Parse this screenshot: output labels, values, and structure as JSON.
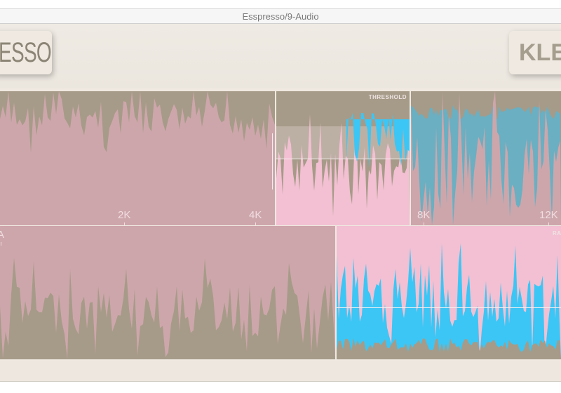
{
  "window": {
    "title": "Esspresso/9-Audio"
  },
  "header": {
    "logo_left": "ESSO",
    "logo_right": "KLE"
  },
  "panels": {
    "spectrum_left": {
      "ticks": [
        "2K",
        "4K"
      ]
    },
    "threshold": {
      "label": "THRESHOLD"
    },
    "spectrum_right": {
      "ticks": [
        "8K",
        "12K"
      ]
    },
    "bottom_left": {
      "label": "A"
    },
    "bottom_right": {
      "label": "RA"
    }
  },
  "colors": {
    "pink": "#f2c0d2",
    "mauve": "#cda6ab",
    "taupe": "#a69b88",
    "cyan": "#3cc6f5",
    "teal": "#6aafc2",
    "frame": "#efe9e1"
  }
}
